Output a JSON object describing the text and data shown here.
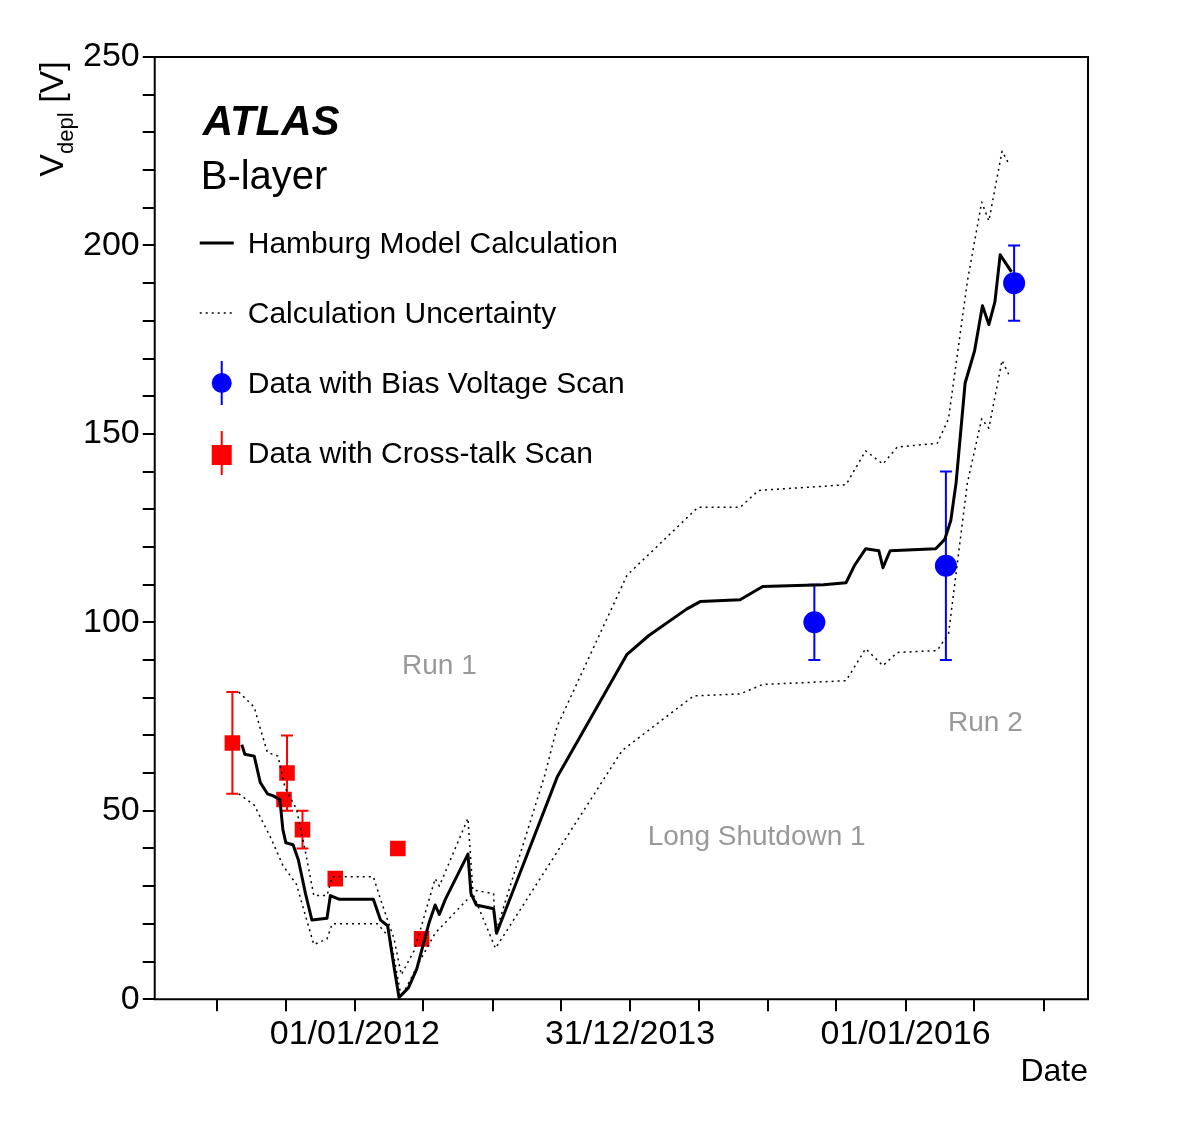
{
  "chart_data": {
    "type": "line",
    "title": "ATLAS",
    "subtitle": "B-layer",
    "xlabel": "Date",
    "ylabel": "V$_{depl}$ [V]",
    "xlim": [
      "2010-07-19",
      "2017-04-29"
    ],
    "xticks": [
      {
        "value": "2011-01-01",
        "label": null
      },
      {
        "value": "2011-07-01",
        "label": null
      },
      {
        "value": "2012-01-01",
        "label": "01/01/2012"
      },
      {
        "value": "2012-07-01",
        "label": null
      },
      {
        "value": "2013-01-01",
        "label": null
      },
      {
        "value": "2013-07-01",
        "label": null
      },
      {
        "value": "2013-12-31",
        "label": "31/12/2013"
      },
      {
        "value": "2014-07-01",
        "label": null
      },
      {
        "value": "2015-01-01",
        "label": null
      },
      {
        "value": "2015-07-01",
        "label": null
      },
      {
        "value": "2016-01-01",
        "label": "01/01/2016"
      },
      {
        "value": "2016-07-01",
        "label": null
      },
      {
        "value": "2017-01-01",
        "label": null
      }
    ],
    "ylim": [
      0,
      250
    ],
    "yticks": [
      0,
      {
        "value": 10,
        "label": null
      },
      {
        "value": 20,
        "label": null
      },
      {
        "value": 30,
        "label": null
      },
      {
        "value": 40,
        "label": null
      },
      50,
      {
        "value": 60,
        "label": null
      },
      {
        "value": 70,
        "label": null
      },
      {
        "value": 80,
        "label": null
      },
      {
        "value": 90,
        "label": null
      },
      100,
      {
        "value": 110,
        "label": null
      },
      {
        "value": 120,
        "label": null
      },
      {
        "value": 130,
        "label": null
      },
      {
        "value": 140,
        "label": null
      },
      150,
      {
        "value": 160,
        "label": null
      },
      {
        "value": 170,
        "label": null
      },
      {
        "value": 180,
        "label": null
      },
      {
        "value": 190,
        "label": null
      },
      200,
      {
        "value": 210,
        "label": null
      },
      {
        "value": 220,
        "label": null
      },
      {
        "value": 230,
        "label": null
      },
      {
        "value": 240,
        "label": null
      },
      250
    ],
    "legend": "top left",
    "annotations": [
      "Run 1",
      "Run 2",
      "Long Shutdown 1"
    ],
    "series": [
      {
        "name": "Hamburg Model Calculation",
        "color": "#000000",
        "line_style": "solid",
        "marker": "none",
        "x": [
          "2011-03-07",
          "2011-03-15",
          "2011-04-09",
          "2011-04-25",
          "2011-05-14",
          "2011-05-28",
          "2011-06-16",
          "2011-06-24",
          "2011-07-02",
          "2011-07-21",
          "2011-08-04",
          "2011-08-23",
          "2011-09-09",
          "2011-10-19",
          "2011-10-28",
          "2011-11-21",
          "2012-02-19",
          "2012-03-09",
          "2012-03-28",
          "2012-04-14",
          "2012-04-27",
          "2012-05-22",
          "2012-06-13",
          "2012-07-15",
          "2012-08-01",
          "2012-08-12",
          "2012-08-28",
          "2012-10-27",
          "2012-11-04",
          "2012-11-18",
          "2013-01-03",
          "2013-01-11",
          "2013-06-21",
          "2013-12-23",
          "2014-02-19",
          "2014-05-30",
          "2014-07-05",
          "2014-10-19",
          "2014-12-18",
          "2015-05-28",
          "2015-07-27",
          "2015-08-18",
          "2015-09-17",
          "2015-10-22",
          "2015-11-02",
          "2015-11-21",
          "2016-03-21",
          "2016-04-14",
          "2016-04-30",
          "2016-05-14",
          "2016-06-07",
          "2016-07-02",
          "2016-07-23",
          "2016-08-09",
          "2016-08-25",
          "2016-09-08",
          "2016-10-08"
        ],
        "values": [
          67.5,
          65,
          64.5,
          57.5,
          54.5,
          54,
          53,
          45,
          41.5,
          41,
          37,
          28,
          21,
          21.5,
          27.5,
          26.5,
          26.5,
          21,
          19.5,
          8.5,
          0.5,
          3,
          8,
          20,
          25,
          22.5,
          26.5,
          38.5,
          28,
          25,
          24,
          17.5,
          59,
          91.5,
          96.5,
          103.5,
          105.5,
          106,
          109.5,
          110,
          110.5,
          115,
          119.5,
          119,
          114.5,
          119,
          119.5,
          122,
          127,
          137,
          163.5,
          172,
          184,
          179,
          185,
          197.5,
          193
        ]
      },
      {
        "name": "Calculation Uncertainty",
        "color": "#000000",
        "line_style": "dotted",
        "marker": "none",
        "x": [
          "2011-02-27",
          "2011-04-09",
          "2011-04-23",
          "2011-05-14",
          "2011-06-11",
          "2011-06-30",
          "2011-07-30",
          "2011-08-23",
          "2011-09-14",
          "2011-10-19",
          "2011-11-02",
          "2012-02-19",
          "2012-03-09",
          "2012-04-14",
          "2012-05-03",
          "2012-06-07",
          "2012-08-01",
          "2012-08-12",
          "2012-10-27",
          "2012-11-09",
          "2013-01-03",
          "2013-01-08",
          "2013-05-19",
          "2013-06-21",
          "2013-12-23",
          "2014-06-29",
          "2014-10-19",
          "2014-12-07",
          "2015-07-27",
          "2015-09-17",
          "2015-11-02",
          "2015-12-10",
          "2016-03-25",
          "2016-04-24",
          "2016-06-13",
          "2016-07-21",
          "2016-08-09",
          "2016-09-13",
          "2016-10-02"
        ],
        "values": [
          81.5,
          77.5,
          72.5,
          65.5,
          64.5,
          56,
          50.5,
          39,
          27.5,
          27.5,
          32.5,
          32.5,
          26.5,
          16,
          6.5,
          13,
          32,
          30,
          48,
          29,
          28,
          17.5,
          59.5,
          72.5,
          112.5,
          130.5,
          130.5,
          135,
          136.5,
          145.5,
          142,
          146.5,
          147.5,
          154,
          190.5,
          211.5,
          206.5,
          225,
          221.5
        ]
      },
      {
        "color": "#000000",
        "line_style": "dotted",
        "marker": "none",
        "x": [
          "2011-02-27",
          "2011-04-09",
          "2011-05-22",
          "2011-06-24",
          "2011-07-30",
          "2011-09-14",
          "2011-10-19",
          "2011-11-02",
          "2012-03-01",
          "2012-04-05",
          "2012-05-03",
          "2012-06-26",
          "2012-08-01",
          "2012-11-09",
          "2013-01-08",
          "2013-12-10",
          "2014-06-18",
          "2014-10-19",
          "2014-12-18",
          "2015-07-27",
          "2015-09-17",
          "2015-11-02",
          "2015-12-10",
          "2016-03-25",
          "2016-04-24",
          "2016-06-13",
          "2016-07-21",
          "2016-08-09",
          "2016-09-13",
          "2016-10-02"
        ],
        "values": [
          54.5,
          51.5,
          43,
          35.5,
          30.5,
          14.5,
          16,
          20,
          20,
          16,
          0.5,
          11,
          17.5,
          28,
          13.5,
          66,
          80.5,
          81,
          83.5,
          84.5,
          93,
          88.5,
          92,
          92.5,
          97,
          137,
          154,
          151.5,
          169.5,
          165.5
        ]
      },
      {
        "name": "Data with Bias Voltage Scan",
        "type": "scatter",
        "color": "#0000ff",
        "marker": "circle",
        "x": [
          "2015-05-04",
          "2016-04-17",
          "2016-10-15"
        ],
        "values": [
          100,
          115,
          190
        ],
        "errors": [
          10,
          25,
          10
        ]
      },
      {
        "name": "Data with Cross-talk Scan",
        "type": "scatter",
        "color": "#ff0000",
        "marker": "square",
        "x": [
          "2011-02-10",
          "2011-07-05",
          "2011-06-27",
          "2011-08-15",
          "2011-11-10",
          "2012-04-24",
          "2012-06-26"
        ],
        "values": [
          68,
          60,
          53,
          45,
          32,
          40,
          16
        ],
        "errors": [
          13.5,
          10,
          null,
          5,
          null,
          null,
          null
        ]
      }
    ]
  }
}
